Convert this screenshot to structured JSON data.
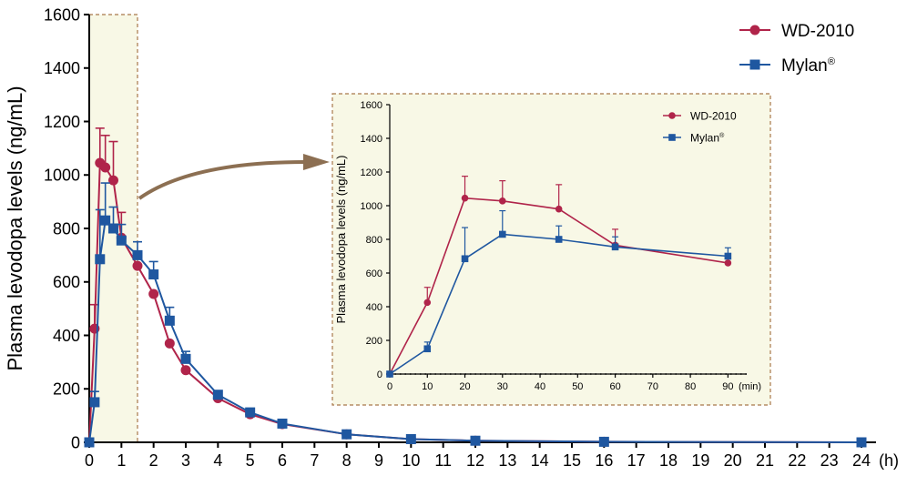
{
  "chart_data": [
    {
      "type": "line",
      "xlabel": "",
      "x_unit": "(h)",
      "ylabel": "Plasma levodopa levels (ng/mL)",
      "xlim": [
        0,
        24
      ],
      "ylim": [
        0,
        1600
      ],
      "xticks": [
        0,
        1,
        2,
        3,
        4,
        5,
        6,
        7,
        8,
        9,
        10,
        11,
        12,
        13,
        14,
        15,
        16,
        17,
        18,
        19,
        20,
        21,
        22,
        23,
        24
      ],
      "yticks": [
        0,
        200,
        400,
        600,
        800,
        1000,
        1200,
        1400,
        1600
      ],
      "highlight_region": [
        0,
        1.5
      ],
      "legend": [
        {
          "name": "WD-2010",
          "color": "#b0244a",
          "marker": "circle"
        },
        {
          "name": "Mylan",
          "suffix": "®",
          "color": "#1f57a0",
          "marker": "square"
        }
      ],
      "series": [
        {
          "name": "WD-2010",
          "x": [
            0,
            0.1667,
            0.3333,
            0.5,
            0.75,
            1,
            1.5,
            2,
            2.5,
            3,
            4,
            5,
            6,
            8,
            10,
            12,
            16,
            24
          ],
          "y": [
            0,
            425,
            1045,
            1028,
            980,
            765,
            660,
            555,
            370,
            270,
            165,
            105,
            68,
            30,
            12,
            6,
            2,
            0
          ],
          "err": [
            0,
            90,
            130,
            120,
            145,
            95,
            0,
            0,
            0,
            0,
            0,
            0,
            0,
            0,
            0,
            0,
            0,
            0
          ]
        },
        {
          "name": "Mylan",
          "x": [
            0,
            0.1667,
            0.3333,
            0.5,
            0.75,
            1,
            1.5,
            2,
            2.5,
            3,
            4,
            5,
            6,
            8,
            10,
            12,
            16,
            24
          ],
          "y": [
            0,
            150,
            685,
            830,
            800,
            755,
            700,
            628,
            455,
            312,
            178,
            112,
            70,
            30,
            12,
            6,
            2,
            0
          ],
          "err": [
            0,
            40,
            185,
            140,
            80,
            60,
            50,
            48,
            50,
            28,
            12,
            8,
            5,
            0,
            0,
            0,
            0,
            0
          ]
        }
      ]
    },
    {
      "type": "line",
      "title": "inset",
      "xlabel": "",
      "x_unit": "(min)",
      "ylabel": "Plasma levodopa levels (ng/mL)",
      "xlim": [
        0,
        95
      ],
      "ylim": [
        0,
        1600
      ],
      "xticks": [
        0,
        10,
        20,
        30,
        40,
        50,
        60,
        70,
        80,
        90
      ],
      "yticks": [
        0,
        200,
        400,
        600,
        800,
        1000,
        1200,
        1400,
        1600
      ],
      "legend": [
        {
          "name": "WD-2010",
          "color": "#b0244a",
          "marker": "circle"
        },
        {
          "name": "Mylan",
          "suffix": "®",
          "color": "#1f57a0",
          "marker": "square"
        }
      ],
      "series": [
        {
          "name": "WD-2010",
          "x": [
            0,
            10,
            20,
            30,
            45,
            60,
            90
          ],
          "y": [
            0,
            425,
            1045,
            1028,
            980,
            765,
            660
          ],
          "err": [
            0,
            90,
            130,
            120,
            145,
            95,
            0
          ]
        },
        {
          "name": "Mylan",
          "x": [
            0,
            10,
            20,
            30,
            45,
            60,
            90
          ],
          "y": [
            0,
            150,
            685,
            830,
            800,
            755,
            700
          ],
          "err": [
            0,
            40,
            185,
            140,
            80,
            60,
            50
          ]
        }
      ]
    }
  ]
}
